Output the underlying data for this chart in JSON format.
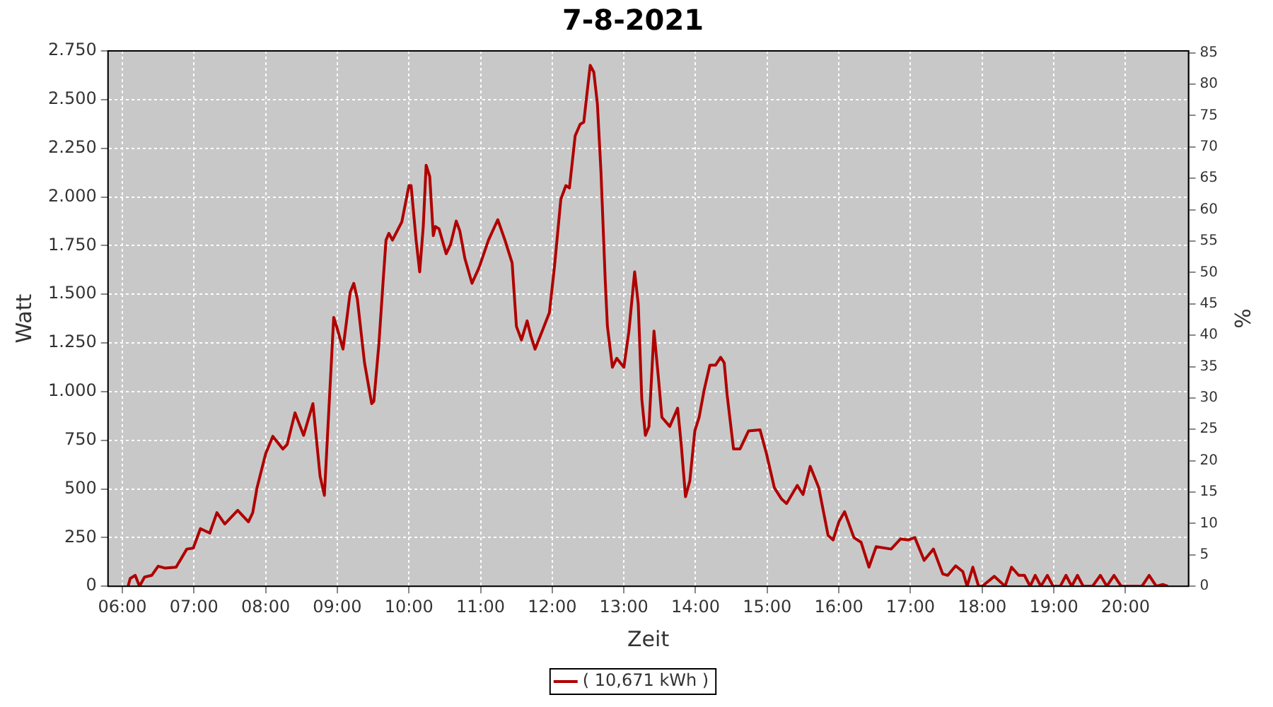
{
  "chart_data": {
    "type": "line",
    "title": "7-8-2021",
    "xlabel": "Zeit",
    "ylabel": "Watt",
    "y2label": "%",
    "xlim": [
      5.8,
      20.88
    ],
    "xticks": [
      {
        "value": 6,
        "label": "06:00"
      },
      {
        "value": 7,
        "label": "07:00"
      },
      {
        "value": 8,
        "label": "08:00"
      },
      {
        "value": 9,
        "label": "09:00"
      },
      {
        "value": 10,
        "label": "10:00"
      },
      {
        "value": 11,
        "label": "11:00"
      },
      {
        "value": 12,
        "label": "12:00"
      },
      {
        "value": 13,
        "label": "13:00"
      },
      {
        "value": 14,
        "label": "14:00"
      },
      {
        "value": 15,
        "label": "15:00"
      },
      {
        "value": 16,
        "label": "16:00"
      },
      {
        "value": 17,
        "label": "17:00"
      },
      {
        "value": 18,
        "label": "18:00"
      },
      {
        "value": 19,
        "label": "19:00"
      },
      {
        "value": 20,
        "label": "20:00"
      }
    ],
    "ylim": [
      0,
      2750
    ],
    "yticks": [
      0,
      250,
      500,
      750,
      {
        "value": 1000,
        "label": "1.000"
      },
      {
        "value": 1250,
        "label": "1.250"
      },
      {
        "value": 1500,
        "label": "1.500"
      },
      {
        "value": 1750,
        "label": "1.750"
      },
      {
        "value": 2000,
        "label": "2.000"
      },
      {
        "value": 2250,
        "label": "2.250"
      },
      {
        "value": 2500,
        "label": "2.500"
      },
      {
        "value": 2750,
        "label": "2.750"
      }
    ],
    "y2lim": [
      0,
      85.3
    ],
    "y2ticks": [
      0,
      5,
      10,
      15,
      20,
      25,
      30,
      35,
      40,
      45,
      50,
      55,
      60,
      65,
      70,
      75,
      80,
      85
    ],
    "grid": true,
    "legend": "bottom",
    "marker": "none",
    "line_style": "solid",
    "series": [
      {
        "name": "( 10,671 kWh )",
        "color": "#b00000",
        "x": [
          6.08,
          6.11,
          6.18,
          6.24,
          6.31,
          6.41,
          6.5,
          6.6,
          6.75,
          6.9,
          6.99,
          7.09,
          7.22,
          7.32,
          7.43,
          7.61,
          7.76,
          7.82,
          7.88,
          8.0,
          8.1,
          8.24,
          8.3,
          8.41,
          8.53,
          8.66,
          8.76,
          8.82,
          8.89,
          8.95,
          9.0,
          9.08,
          9.18,
          9.23,
          9.28,
          9.38,
          9.48,
          9.51,
          9.58,
          9.64,
          9.68,
          9.72,
          9.77,
          9.9,
          10.0,
          10.03,
          10.1,
          10.15,
          10.2,
          10.24,
          10.29,
          10.34,
          10.37,
          10.42,
          10.52,
          10.58,
          10.66,
          10.71,
          10.78,
          10.88,
          10.98,
          11.11,
          11.24,
          11.34,
          11.44,
          11.5,
          11.57,
          11.65,
          11.7,
          11.76,
          11.86,
          11.96,
          12.03,
          12.12,
          12.19,
          12.24,
          12.32,
          12.39,
          12.44,
          12.49,
          12.53,
          12.58,
          12.63,
          12.68,
          12.74,
          12.77,
          12.84,
          12.9,
          13.0,
          13.07,
          13.15,
          13.2,
          13.25,
          13.3,
          13.35,
          13.42,
          13.48,
          13.53,
          13.64,
          13.75,
          13.8,
          13.86,
          13.92,
          13.99,
          14.05,
          14.12,
          14.2,
          14.28,
          14.35,
          14.4,
          14.44,
          14.53,
          14.62,
          14.74,
          14.9,
          14.99,
          15.1,
          15.2,
          15.27,
          15.42,
          15.5,
          15.6,
          15.72,
          15.85,
          15.92,
          16.0,
          16.08,
          16.21,
          16.31,
          16.42,
          16.52,
          16.73,
          16.86,
          16.97,
          17.06,
          17.19,
          17.32,
          17.45,
          17.52,
          17.63,
          17.73,
          17.79,
          17.87,
          17.95,
          18.0,
          18.17,
          18.32,
          18.41,
          18.51,
          18.59,
          18.67,
          18.74,
          18.82,
          18.91,
          18.99,
          19.09,
          19.17,
          19.25,
          19.33,
          19.41,
          19.54,
          19.65,
          19.74,
          19.84,
          19.94,
          20.23,
          20.33,
          20.43,
          20.52,
          20.59
        ],
        "values": [
          0,
          40,
          56,
          0,
          47,
          56,
          103,
          93,
          98,
          191,
          196,
          296,
          273,
          378,
          320,
          390,
          331,
          378,
          506,
          681,
          770,
          705,
          728,
          891,
          775,
          938,
          565,
          467,
          961,
          1381,
          1323,
          1218,
          1510,
          1556,
          1475,
          1148,
          938,
          950,
          1241,
          1568,
          1778,
          1813,
          1778,
          1871,
          2058,
          2058,
          1778,
          1615,
          1848,
          2163,
          2105,
          1801,
          1848,
          1836,
          1708,
          1755,
          1876,
          1825,
          1685,
          1556,
          1638,
          1778,
          1883,
          1778,
          1661,
          1335,
          1265,
          1363,
          1288,
          1218,
          1311,
          1405,
          1638,
          1988,
          2058,
          2046,
          2314,
          2373,
          2384,
          2548,
          2676,
          2641,
          2478,
          2128,
          1568,
          1335,
          1125,
          1171,
          1125,
          1311,
          1615,
          1451,
          961,
          775,
          821,
          1311,
          1078,
          868,
          821,
          915,
          728,
          460,
          541,
          798,
          868,
          1008,
          1136,
          1136,
          1176,
          1148,
          985,
          705,
          705,
          798,
          803,
          681,
          506,
          448,
          425,
          518,
          471,
          616,
          506,
          261,
          238,
          331,
          383,
          250,
          226,
          98,
          203,
          191,
          243,
          238,
          250,
          133,
          191,
          63,
          56,
          105,
          75,
          0,
          98,
          0,
          0,
          51,
          0,
          98,
          56,
          56,
          0,
          56,
          0,
          56,
          0,
          0,
          56,
          0,
          56,
          0,
          0,
          56,
          0,
          56,
          0,
          0,
          56,
          0,
          9,
          0
        ]
      }
    ]
  }
}
